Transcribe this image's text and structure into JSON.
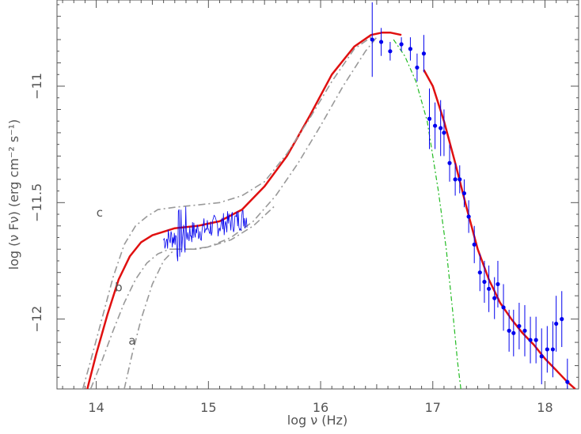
{
  "chart_data": {
    "type": "line",
    "xlabel": "log ν (Hz)",
    "ylabel": "log (ν Fν) (erg cm⁻² s⁻¹)",
    "xlim": [
      13.65,
      18.3
    ],
    "ylim": [
      -12.3,
      -10.63
    ],
    "x_ticks": [
      {
        "v": 14,
        "label": "14"
      },
      {
        "v": 15,
        "label": "15"
      },
      {
        "v": 16,
        "label": "16"
      },
      {
        "v": 17,
        "label": "17"
      },
      {
        "v": 18,
        "label": "18"
      }
    ],
    "y_ticks": [
      {
        "v": -11,
        "label": "−11"
      },
      {
        "v": -11.5,
        "label": "−11.5"
      },
      {
        "v": -12,
        "label": "−12"
      }
    ],
    "grid": false,
    "colors": {
      "model": "#e01010",
      "dashdot": "#999999",
      "data": "#0000ee",
      "uv_green": "#22bb22",
      "axis": "#555555"
    },
    "series": [
      {
        "style": "solid-red",
        "x": [
          13.92,
          14.0,
          14.1,
          14.2,
          14.3,
          14.4,
          14.5,
          14.7,
          14.9,
          15.1,
          15.3,
          15.5,
          15.7,
          15.9,
          16.1,
          16.3,
          16.45,
          16.55,
          16.62,
          16.72
        ],
        "y": [
          -12.3,
          -12.15,
          -11.98,
          -11.83,
          -11.73,
          -11.67,
          -11.64,
          -11.61,
          -11.6,
          -11.58,
          -11.53,
          -11.43,
          -11.3,
          -11.13,
          -10.95,
          -10.83,
          -10.78,
          -10.77,
          -10.77,
          -10.78
        ]
      },
      {
        "style": "solid-red",
        "x": [
          16.92,
          17.0,
          17.1,
          17.2,
          17.3,
          17.4,
          17.5,
          17.6,
          17.7,
          17.8,
          17.9,
          18.0,
          18.1,
          18.2,
          18.27
        ],
        "y": [
          -10.93,
          -11.0,
          -11.15,
          -11.33,
          -11.52,
          -11.7,
          -11.83,
          -11.93,
          -12.0,
          -12.06,
          -12.11,
          -12.17,
          -12.22,
          -12.27,
          -12.3
        ]
      },
      {
        "style": "dashdot-gray",
        "label": "a",
        "x": [
          14.25,
          14.32,
          14.4,
          14.5,
          14.6,
          14.7,
          14.8,
          14.9,
          15.0,
          15.2,
          15.4,
          15.6,
          15.8,
          16.0,
          16.2,
          16.4,
          16.5
        ],
        "y": [
          -12.3,
          -12.15,
          -12.0,
          -11.85,
          -11.75,
          -11.7,
          -11.7,
          -11.7,
          -11.69,
          -11.65,
          -11.58,
          -11.47,
          -11.33,
          -11.17,
          -11.0,
          -10.85,
          -10.79
        ]
      },
      {
        "style": "dashdot-gray",
        "label": "b",
        "x": [
          13.95,
          14.05,
          14.15,
          14.25,
          14.35,
          14.45,
          14.55,
          14.65,
          14.75,
          14.85,
          15.0,
          15.2,
          15.4,
          15.6
        ],
        "y": [
          -12.3,
          -12.18,
          -12.05,
          -11.93,
          -11.83,
          -11.76,
          -11.72,
          -11.7,
          -11.7,
          -11.7,
          -11.69,
          -11.66,
          -11.6,
          -11.51
        ]
      },
      {
        "style": "dashdot-gray",
        "label": "c",
        "x": [
          13.88,
          13.95,
          14.05,
          14.15,
          14.25,
          14.35,
          14.45,
          14.55,
          14.7,
          14.9,
          15.1,
          15.3,
          15.5,
          15.7,
          15.9,
          16.1,
          16.3,
          16.45
        ],
        "y": [
          -12.3,
          -12.18,
          -12.0,
          -11.82,
          -11.68,
          -11.6,
          -11.56,
          -11.53,
          -11.52,
          -11.51,
          -11.5,
          -11.47,
          -11.41,
          -11.29,
          -11.14,
          -10.98,
          -10.84,
          -10.79
        ]
      },
      {
        "style": "dashdot-green",
        "x": [
          16.65,
          16.75,
          16.85,
          16.95,
          17.05,
          17.12,
          17.18,
          17.22,
          17.25
        ],
        "y": [
          -10.8,
          -10.87,
          -10.98,
          -11.15,
          -11.45,
          -11.7,
          -11.98,
          -12.18,
          -12.3
        ]
      }
    ],
    "curve_labels": [
      {
        "text": "a",
        "x": 14.32,
        "y": -12.11
      },
      {
        "text": "b",
        "x": 14.2,
        "y": -11.88
      },
      {
        "text": "c",
        "x": 14.03,
        "y": -11.56
      }
    ],
    "noisy_spectrum": {
      "x_range": [
        14.6,
        15.35
      ]
    },
    "xray_points": [
      {
        "x": 16.46,
        "y": -10.8,
        "e": 0.16
      },
      {
        "x": 16.54,
        "y": -10.81,
        "e": 0.06
      },
      {
        "x": 16.62,
        "y": -10.85,
        "e": 0.04
      },
      {
        "x": 16.72,
        "y": -10.82,
        "e": 0.03
      },
      {
        "x": 16.8,
        "y": -10.84,
        "e": 0.05
      },
      {
        "x": 16.86,
        "y": -10.92,
        "e": 0.06
      },
      {
        "x": 16.92,
        "y": -10.86,
        "e": 0.08
      },
      {
        "x": 16.97,
        "y": -11.14,
        "e": 0.13
      },
      {
        "x": 17.02,
        "y": -11.17,
        "e": 0.1
      },
      {
        "x": 17.07,
        "y": -11.18,
        "e": 0.12
      },
      {
        "x": 17.1,
        "y": -11.2,
        "e": 0.1
      },
      {
        "x": 17.15,
        "y": -11.33,
        "e": 0.08
      },
      {
        "x": 17.2,
        "y": -11.4,
        "e": 0.07
      },
      {
        "x": 17.24,
        "y": -11.4,
        "e": 0.06
      },
      {
        "x": 17.28,
        "y": -11.46,
        "e": 0.06
      },
      {
        "x": 17.32,
        "y": -11.56,
        "e": 0.07
      },
      {
        "x": 17.37,
        "y": -11.68,
        "e": 0.08
      },
      {
        "x": 17.42,
        "y": -11.8,
        "e": 0.08
      },
      {
        "x": 17.46,
        "y": -11.84,
        "e": 0.09
      },
      {
        "x": 17.5,
        "y": -11.87,
        "e": 0.1
      },
      {
        "x": 17.55,
        "y": -11.91,
        "e": 0.09
      },
      {
        "x": 17.58,
        "y": -11.85,
        "e": 0.1
      },
      {
        "x": 17.63,
        "y": -11.95,
        "e": 0.1
      },
      {
        "x": 17.68,
        "y": -12.05,
        "e": 0.09
      },
      {
        "x": 17.72,
        "y": -12.06,
        "e": 0.1
      },
      {
        "x": 17.77,
        "y": -12.03,
        "e": 0.1
      },
      {
        "x": 17.82,
        "y": -12.05,
        "e": 0.11
      },
      {
        "x": 17.87,
        "y": -12.09,
        "e": 0.1
      },
      {
        "x": 17.92,
        "y": -12.09,
        "e": 0.1
      },
      {
        "x": 17.97,
        "y": -12.16,
        "e": 0.12
      },
      {
        "x": 18.02,
        "y": -12.13,
        "e": 0.1
      },
      {
        "x": 18.07,
        "y": -12.13,
        "e": 0.12
      },
      {
        "x": 18.1,
        "y": -12.02,
        "e": 0.12
      },
      {
        "x": 18.15,
        "y": -12.0,
        "e": 0.12
      },
      {
        "x": 18.2,
        "y": -12.27,
        "e": 0.1
      }
    ]
  }
}
